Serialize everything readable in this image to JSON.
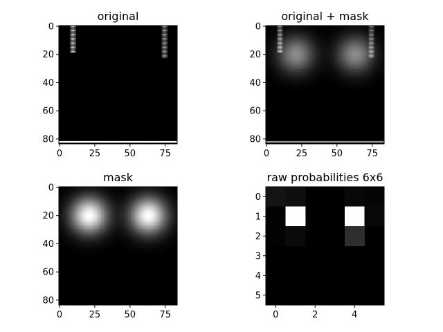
{
  "colors": {
    "background": "#ffffff",
    "axis": "#000000",
    "image_low": "#000000",
    "image_high": "#ffffff"
  },
  "chart_data": [
    {
      "type": "heatmap",
      "title": "original",
      "xlabel": "",
      "ylabel": "",
      "image_size": [
        84,
        84
      ],
      "xlim": [
        -0.5,
        83.5
      ],
      "ylim": [
        83.5,
        -0.5
      ],
      "x_ticks": [
        0,
        25,
        50,
        75
      ],
      "y_ticks": [
        0,
        20,
        40,
        60,
        80
      ],
      "tick_labels_x": [
        "0",
        "25",
        "50",
        "75"
      ],
      "tick_labels_y": [
        "0",
        "20",
        "40",
        "60",
        "80"
      ],
      "colormap": "gray",
      "features": [
        {
          "kind": "vertical_dashes",
          "x_range": [
            8,
            11
          ],
          "y_range": [
            0,
            18
          ],
          "max_intensity": 0.75
        },
        {
          "kind": "vertical_dashes",
          "x_range": [
            73,
            76
          ],
          "y_range": [
            0,
            22
          ],
          "max_intensity": 0.6
        },
        {
          "kind": "horizontal_line",
          "y": 82,
          "x_range": [
            0,
            83
          ],
          "intensity": 1.0
        }
      ]
    },
    {
      "type": "heatmap",
      "title": "original + mask",
      "xlabel": "",
      "ylabel": "",
      "image_size": [
        84,
        84
      ],
      "xlim": [
        -0.5,
        83.5
      ],
      "ylim": [
        83.5,
        -0.5
      ],
      "x_ticks": [
        0,
        25,
        50,
        75
      ],
      "y_ticks": [
        0,
        20,
        40,
        60,
        80
      ],
      "tick_labels_x": [
        "0",
        "25",
        "50",
        "75"
      ],
      "tick_labels_y": [
        "0",
        "20",
        "40",
        "60",
        "80"
      ],
      "colormap": "gray",
      "features": [
        {
          "kind": "gaussian_blob",
          "center": [
            21,
            20
          ],
          "sigma": 9,
          "peak": 0.55
        },
        {
          "kind": "gaussian_blob",
          "center": [
            63,
            20
          ],
          "sigma": 9,
          "peak": 0.55
        },
        {
          "kind": "vertical_dashes",
          "x_range": [
            8,
            11
          ],
          "y_range": [
            0,
            18
          ],
          "max_intensity": 0.55
        },
        {
          "kind": "vertical_dashes",
          "x_range": [
            73,
            76
          ],
          "y_range": [
            0,
            22
          ],
          "max_intensity": 0.45
        },
        {
          "kind": "horizontal_line",
          "y": 82,
          "x_range": [
            0,
            83
          ],
          "intensity": 0.6
        }
      ]
    },
    {
      "type": "heatmap",
      "title": "mask",
      "xlabel": "",
      "ylabel": "",
      "image_size": [
        84,
        84
      ],
      "xlim": [
        -0.5,
        83.5
      ],
      "ylim": [
        83.5,
        -0.5
      ],
      "x_ticks": [
        0,
        25,
        50,
        75
      ],
      "y_ticks": [
        0,
        20,
        40,
        60,
        80
      ],
      "tick_labels_x": [
        "0",
        "25",
        "50",
        "75"
      ],
      "tick_labels_y": [
        "0",
        "20",
        "40",
        "60",
        "80"
      ],
      "colormap": "gray",
      "features": [
        {
          "kind": "gaussian_blob",
          "center": [
            21,
            20
          ],
          "sigma": 9,
          "peak": 1.0
        },
        {
          "kind": "gaussian_blob",
          "center": [
            63,
            20
          ],
          "sigma": 9,
          "peak": 1.0
        }
      ]
    },
    {
      "type": "heatmap",
      "title": "raw probabilities 6x6",
      "xlabel": "",
      "ylabel": "",
      "image_size": [
        6,
        6
      ],
      "xlim": [
        -0.5,
        5.5
      ],
      "ylim": [
        5.5,
        -0.5
      ],
      "x_ticks": [
        0,
        2,
        4
      ],
      "y_ticks": [
        0,
        1,
        2,
        3,
        4,
        5
      ],
      "tick_labels_x": [
        "0",
        "2",
        "4"
      ],
      "tick_labels_y": [
        "0",
        "1",
        "2",
        "3",
        "4",
        "5"
      ],
      "colormap": "gray",
      "values": [
        [
          0.08,
          0.06,
          0.0,
          0.0,
          0.03,
          0.02
        ],
        [
          0.01,
          1.0,
          0.0,
          0.0,
          1.0,
          0.03
        ],
        [
          0.01,
          0.04,
          0.0,
          0.0,
          0.18,
          0.0
        ],
        [
          0.0,
          0.0,
          0.0,
          0.0,
          0.0,
          0.0
        ],
        [
          0.0,
          0.0,
          0.0,
          0.0,
          0.0,
          0.0
        ],
        [
          0.0,
          0.0,
          0.0,
          0.0,
          0.0,
          0.0
        ]
      ]
    }
  ]
}
